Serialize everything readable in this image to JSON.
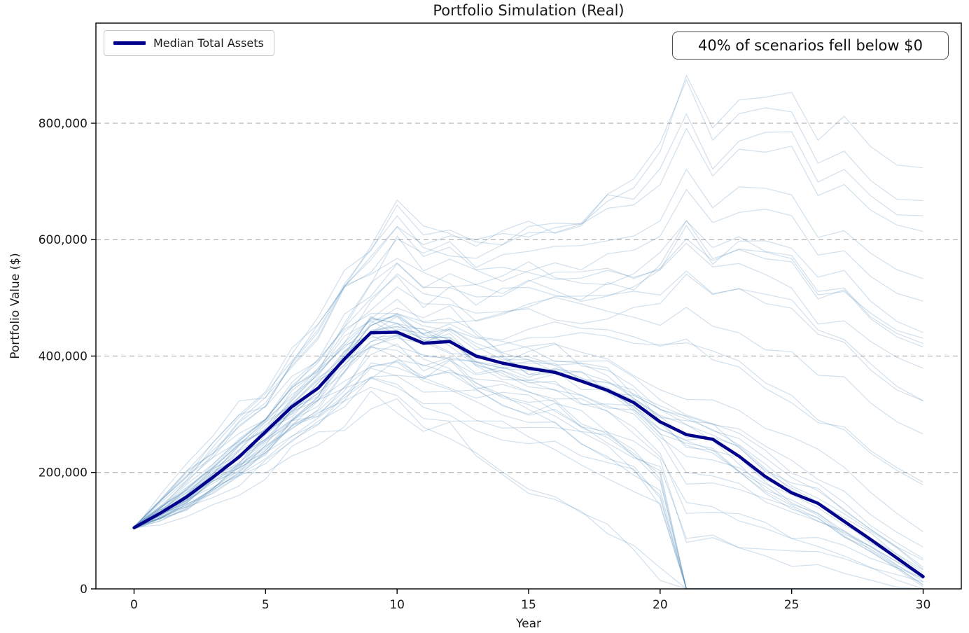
{
  "title": "Portfolio Simulation (Real)",
  "annotation": "40% of scenarios fell below $0",
  "legend": {
    "label": "Median Total Assets"
  },
  "axes": {
    "xlabel": "Year",
    "ylabel": "Portfolio Value ($)",
    "x_ticks": [
      0,
      5,
      10,
      15,
      20,
      25,
      30
    ],
    "y_ticks": [
      0,
      200000,
      400000,
      600000,
      800000
    ],
    "y_tick_labels": [
      "0",
      "200,000",
      "400,000",
      "600,000",
      "800,000"
    ],
    "xlim": [
      -1.45,
      31.45
    ],
    "ylim": [
      0,
      972000
    ],
    "grid": "horizontal-dashed"
  },
  "colors": {
    "median": "#00008B",
    "scenario": "#4682B4",
    "scenario_alpha": 0.25,
    "grid": "#b3b3b3",
    "spine": "#000000",
    "background": "#ffffff"
  },
  "chart_data": {
    "type": "line",
    "title": "Portfolio Simulation (Real)",
    "xlabel": "Year",
    "ylabel": "Portfolio Value ($)",
    "x": [
      0,
      1,
      2,
      3,
      4,
      5,
      6,
      7,
      8,
      9,
      10,
      11,
      12,
      13,
      14,
      15,
      16,
      17,
      18,
      19,
      20,
      21,
      22,
      23,
      24,
      25,
      26,
      27,
      28,
      29,
      30
    ],
    "series": [
      {
        "name": "Median Total Assets",
        "values": [
          105000,
          130000,
          158000,
          192000,
          227000,
          270000,
          313000,
          345000,
          395000,
          440000,
          441000,
          422000,
          425000,
          400000,
          388000,
          379000,
          372000,
          357000,
          341000,
          320000,
          287000,
          265000,
          257000,
          228000,
          193000,
          165000,
          147000,
          116000,
          85000,
          53000,
          21000
        ]
      }
    ],
    "scenario_envelope_max": [
      109000,
      155000,
      208000,
      257000,
      307000,
      330000,
      403000,
      455000,
      545000,
      600000,
      685000,
      622000,
      630000,
      615000,
      628000,
      650000,
      652000,
      657000,
      700000,
      720000,
      787000,
      910000,
      817000,
      878000,
      890000,
      895000,
      807000,
      840000,
      785000,
      753000,
      749000
    ],
    "scenario_envelope_min": [
      101000,
      115000,
      128000,
      147000,
      172000,
      185000,
      223000,
      245000,
      270000,
      310000,
      300000,
      272000,
      270000,
      235000,
      218000,
      200000,
      182000,
      147000,
      110000,
      70000,
      17000,
      0,
      0,
      0,
      0,
      0,
      0,
      0,
      0,
      0,
      0
    ],
    "scenario_count": 48,
    "scenario_seed": 13,
    "pct_scenarios_below_zero": 40,
    "start_value": 105000,
    "legend_position": "upper-left",
    "annotation_position": "upper-right"
  }
}
